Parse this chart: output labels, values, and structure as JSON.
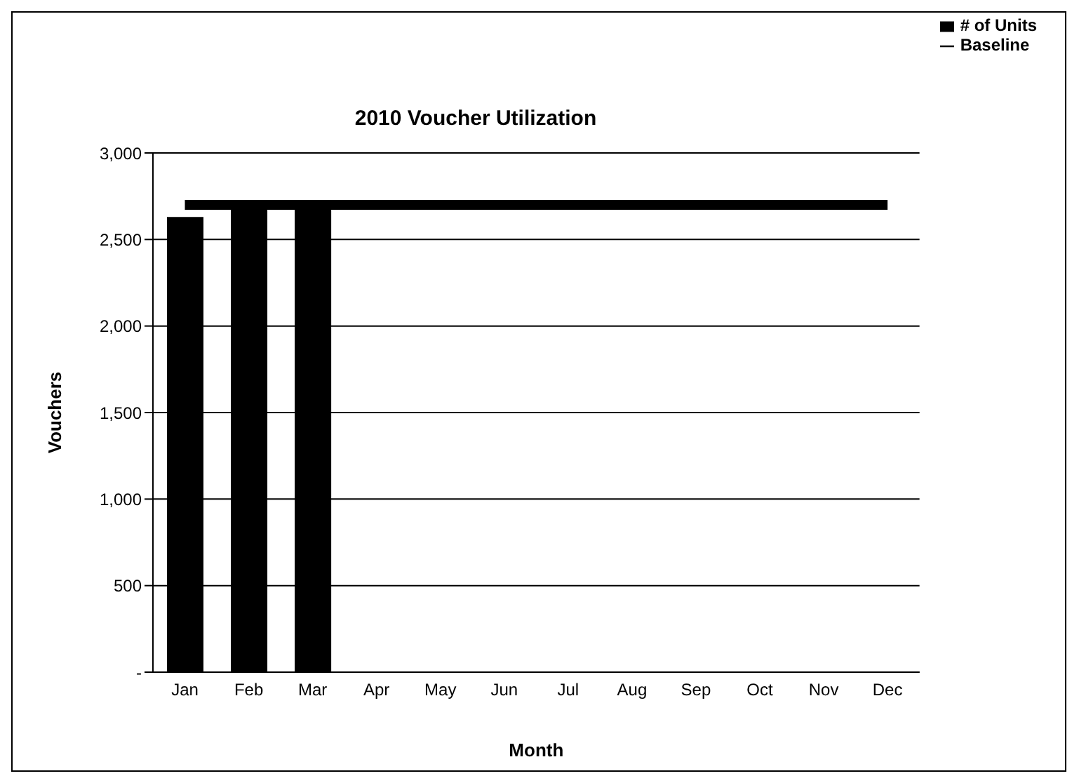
{
  "chart_data": {
    "type": "bar",
    "title": "2010 Voucher Utilization",
    "xlabel": "Month",
    "ylabel": "Vouchers",
    "categories": [
      "Jan",
      "Feb",
      "Mar",
      "Apr",
      "May",
      "Jun",
      "Jul",
      "Aug",
      "Sep",
      "Oct",
      "Nov",
      "Dec"
    ],
    "series": [
      {
        "name": "# of Units",
        "color": "#000000",
        "values": [
          2630,
          2680,
          2680,
          null,
          null,
          null,
          null,
          null,
          null,
          null,
          null,
          null
        ]
      },
      {
        "name": "Baseline",
        "type": "line",
        "color": "#000000",
        "values": [
          2700,
          2700,
          2700,
          2700,
          2700,
          2700,
          2700,
          2700,
          2700,
          2700,
          2700,
          2700
        ]
      }
    ],
    "ylim": [
      0,
      3000
    ],
    "yticks": [
      {
        "value": 0,
        "label": "-"
      },
      500,
      {
        "value": 1000,
        "label": "1,000"
      },
      {
        "value": 1500,
        "label": "1,500"
      },
      {
        "value": 2000,
        "label": "2,000"
      },
      {
        "value": 2500,
        "label": "2,500"
      },
      {
        "value": 3000,
        "label": "3,000"
      }
    ],
    "grid": "y",
    "legend": "top right",
    "marker": "none"
  }
}
